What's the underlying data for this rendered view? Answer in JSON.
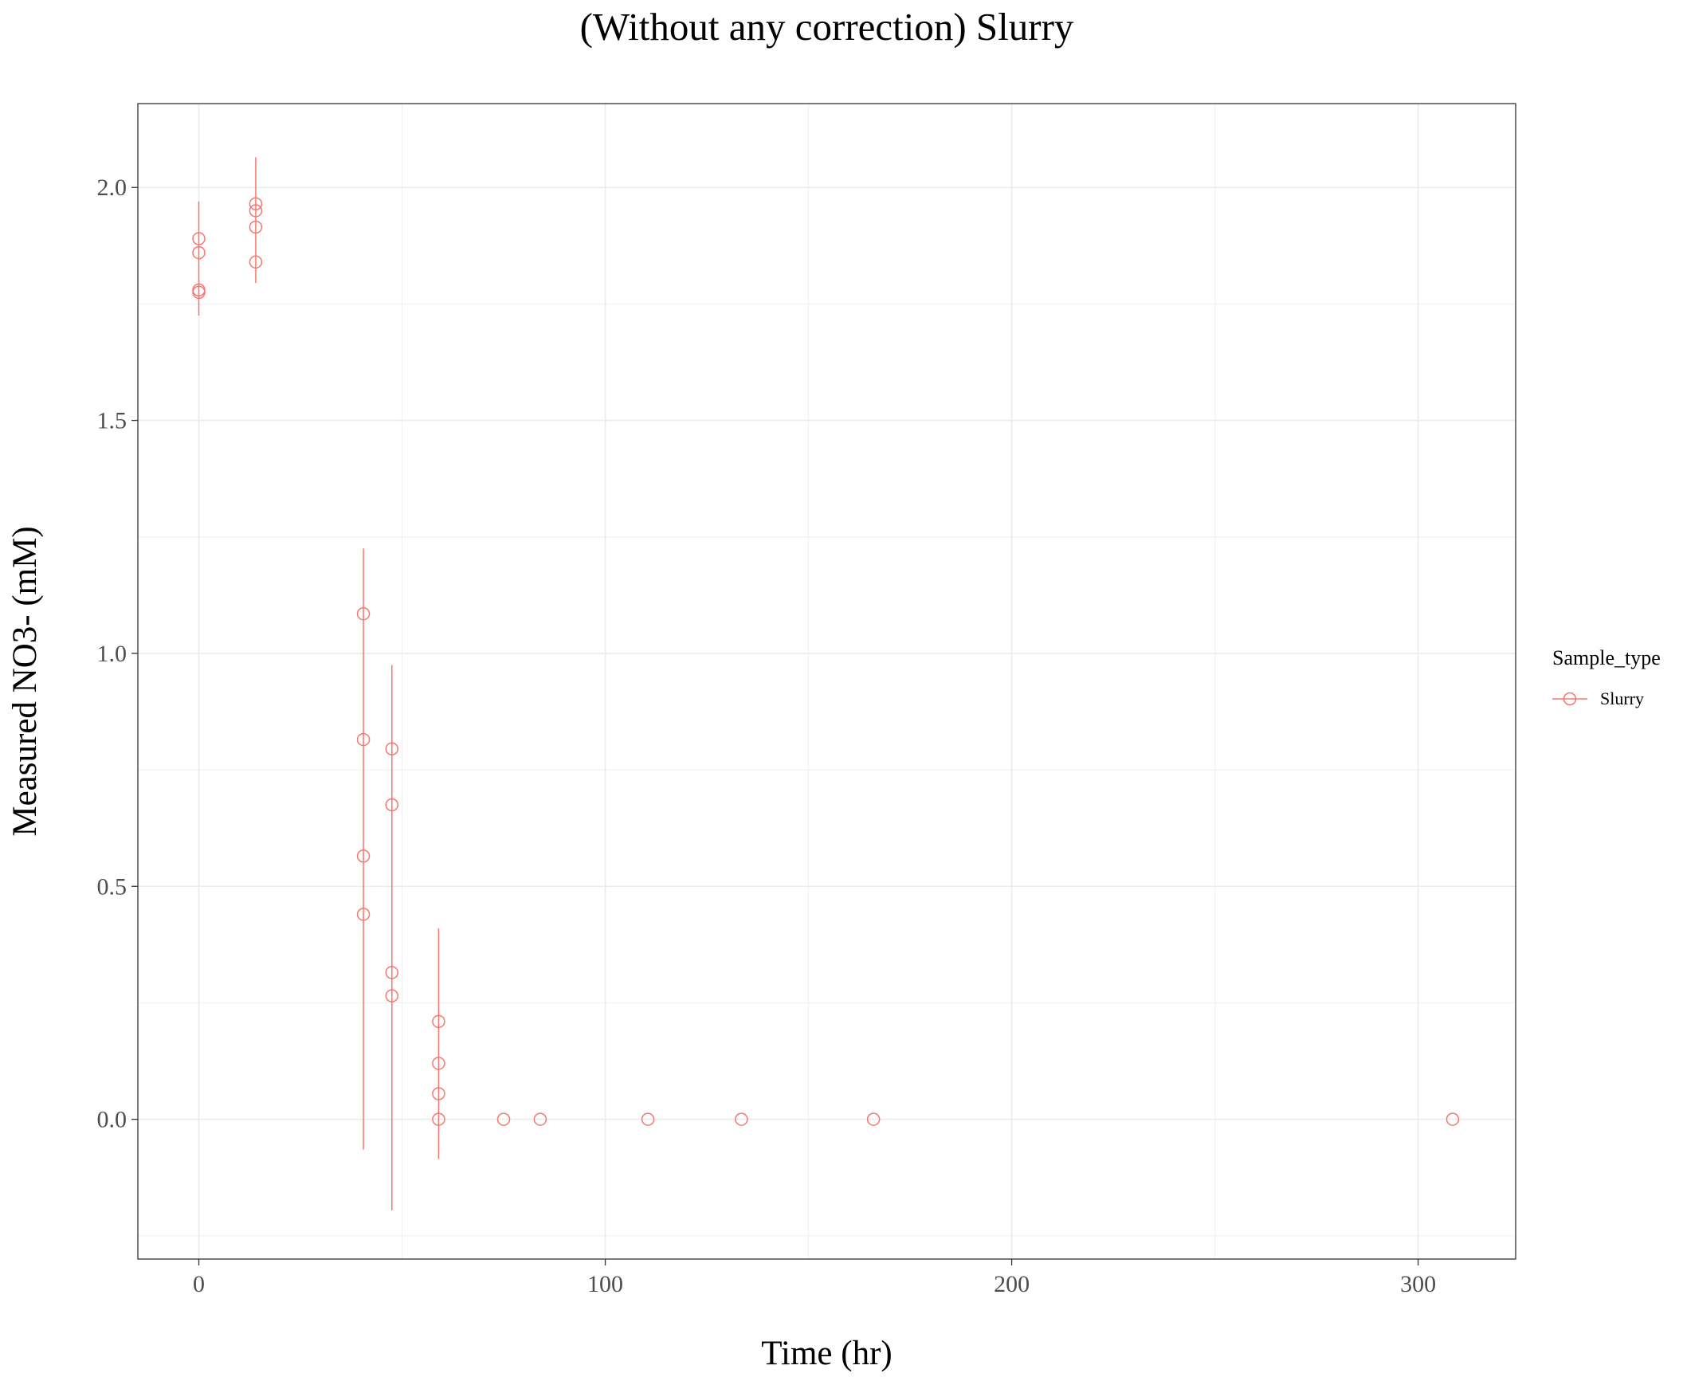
{
  "chart_data": {
    "type": "scatter",
    "title": "(Without any correction) Slurry",
    "xlabel": "Time (hr)",
    "ylabel": "Measured NO3- (mM)",
    "xlim": [
      -15,
      324
    ],
    "ylim": [
      -0.3,
      2.18
    ],
    "x_ticks": [
      0,
      100,
      200,
      300
    ],
    "x_tick_labels": [
      "0",
      "100",
      "200",
      "300"
    ],
    "y_ticks": [
      0.0,
      0.5,
      1.0,
      1.5,
      2.0
    ],
    "y_tick_labels": [
      "0.0",
      "0.5",
      "1.0",
      "1.5",
      "2.0"
    ],
    "grid": true,
    "legend": {
      "title": "Sample_type",
      "placement": "right",
      "entries": [
        {
          "label": "Slurry",
          "color": "#F8766D"
        }
      ]
    },
    "series": [
      {
        "name": "Slurry",
        "color": "#F8766D",
        "points": [
          {
            "x": 0,
            "y": 1.89
          },
          {
            "x": 0,
            "y": 1.86
          },
          {
            "x": 0,
            "y": 1.78
          },
          {
            "x": 0,
            "y": 1.775
          },
          {
            "x": 14,
            "y": 1.965
          },
          {
            "x": 14,
            "y": 1.95
          },
          {
            "x": 14,
            "y": 1.915
          },
          {
            "x": 14,
            "y": 1.84
          },
          {
            "x": 40.5,
            "y": 1.085
          },
          {
            "x": 40.5,
            "y": 0.815
          },
          {
            "x": 40.5,
            "y": 0.565
          },
          {
            "x": 40.5,
            "y": 0.44
          },
          {
            "x": 47.5,
            "y": 0.795
          },
          {
            "x": 47.5,
            "y": 0.675
          },
          {
            "x": 47.5,
            "y": 0.315
          },
          {
            "x": 47.5,
            "y": 0.265
          },
          {
            "x": 59,
            "y": 0.21
          },
          {
            "x": 59,
            "y": 0.12
          },
          {
            "x": 59,
            "y": 0.055
          },
          {
            "x": 59,
            "y": 0.0
          },
          {
            "x": 75,
            "y": 0.0
          },
          {
            "x": 84,
            "y": 0.0
          },
          {
            "x": 110.5,
            "y": 0.0
          },
          {
            "x": 133.5,
            "y": 0.0
          },
          {
            "x": 166,
            "y": 0.0
          },
          {
            "x": 308.5,
            "y": 0.0
          }
        ],
        "error_bars": [
          {
            "x": 0,
            "low": 1.725,
            "high": 1.97
          },
          {
            "x": 14,
            "low": 1.795,
            "high": 2.065
          },
          {
            "x": 40.5,
            "low": -0.065,
            "high": 1.225
          },
          {
            "x": 47.5,
            "low": -0.195,
            "high": 0.975
          },
          {
            "x": 59,
            "low": -0.085,
            "high": 0.41
          }
        ]
      }
    ]
  }
}
